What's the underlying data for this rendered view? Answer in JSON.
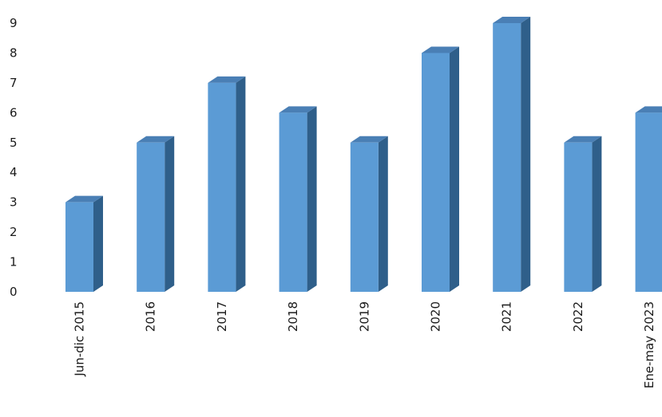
{
  "chart_data": {
    "type": "bar",
    "categories": [
      "Jun-dic 2015",
      "2016",
      "2017",
      "2018",
      "2019",
      "2020",
      "2021",
      "2022",
      "Ene-may 2023"
    ],
    "values": [
      3,
      5,
      7,
      6,
      5,
      8,
      9,
      5,
      6
    ],
    "title": "",
    "xlabel": "",
    "ylabel": "",
    "ylim": [
      0,
      9
    ],
    "yticks": [
      "0",
      "1",
      "2",
      "3",
      "4",
      "5",
      "6",
      "7",
      "8",
      "9"
    ],
    "grid": false,
    "legend": "none",
    "colors": {
      "bar_front": "#5b9bd5",
      "bar_side": "#2f5f8a",
      "bar_top": "#4a7fb5"
    }
  }
}
